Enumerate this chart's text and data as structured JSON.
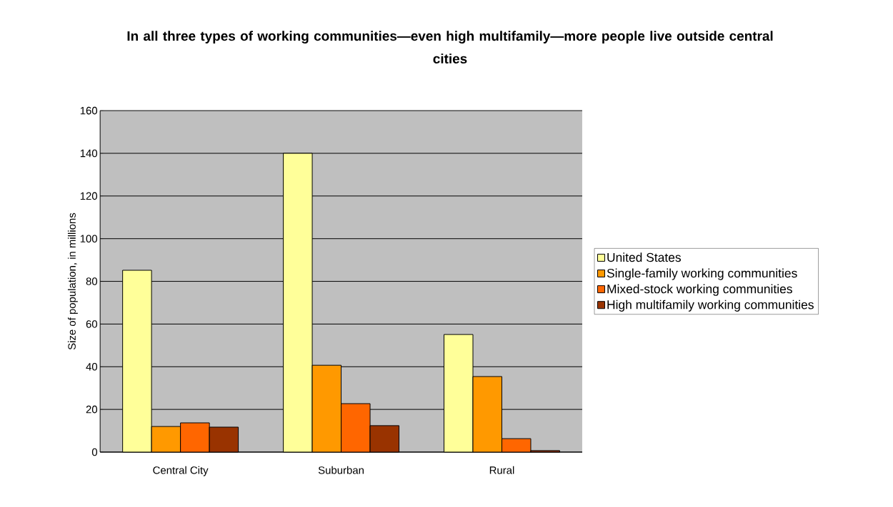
{
  "chart_data": {
    "type": "bar",
    "title": "In all three types of working communities—even high multifamily—more people live outside central cities",
    "ylabel": "Size of population, in millions",
    "categories": [
      "Central City",
      "Suburban",
      "Rural"
    ],
    "series": [
      {
        "name": "United States",
        "color": "#ffff99",
        "values": [
          85.2,
          140,
          55.1
        ]
      },
      {
        "name": "Single-family working communities",
        "color": "#ff9900",
        "values": [
          12,
          40.7,
          35.4
        ]
      },
      {
        "name": "Mixed-stock working communities",
        "color": "#ff6600",
        "values": [
          13.7,
          22.7,
          6.3
        ]
      },
      {
        "name": "High multifamily working communities",
        "color": "#993300",
        "values": [
          11.7,
          12.4,
          0.7
        ]
      }
    ],
    "ylim": [
      0,
      160
    ],
    "yticks": [
      0,
      20,
      40,
      60,
      80,
      100,
      120,
      140,
      160
    ],
    "grid": "y",
    "legend": "right"
  }
}
